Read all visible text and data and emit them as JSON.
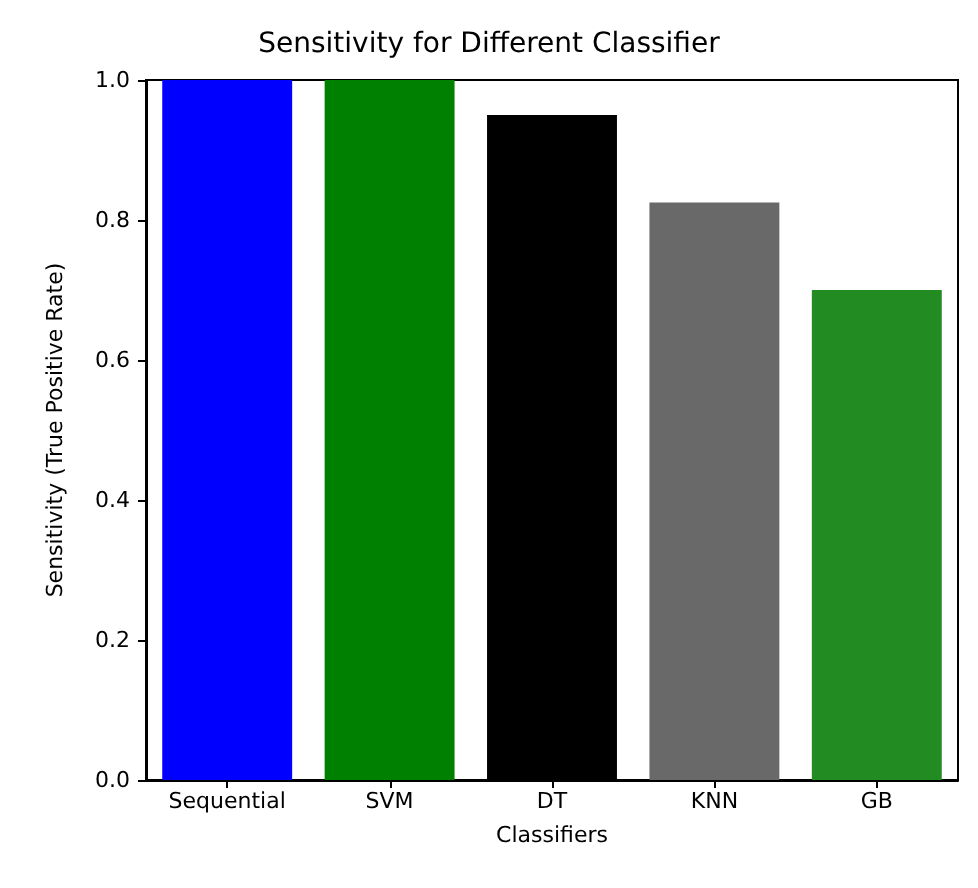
{
  "chart_data": {
    "type": "bar",
    "title": "Sensitivity for Different Classifier",
    "xlabel": "Classifiers",
    "ylabel": "Sensitivity (True Positive Rate)",
    "categories": [
      "Sequential",
      "SVM",
      "DT",
      "KNN",
      "GB"
    ],
    "values": [
      1.0,
      1.0,
      0.95,
      0.825,
      0.7
    ],
    "colors": [
      "#0000ff",
      "#008000",
      "#000000",
      "#696969",
      "#228b22"
    ],
    "ylim": [
      0,
      1.0
    ],
    "yticks": [
      {
        "value": 0,
        "label": "0.0"
      },
      {
        "value": 0.2,
        "label": "0.2"
      },
      {
        "value": 0.4,
        "label": "0.4"
      },
      {
        "value": 0.6,
        "label": "0.6"
      },
      {
        "value": 0.8,
        "label": "0.8"
      },
      {
        "value": 1.0,
        "label": "1.0"
      }
    ],
    "grid": false
  }
}
